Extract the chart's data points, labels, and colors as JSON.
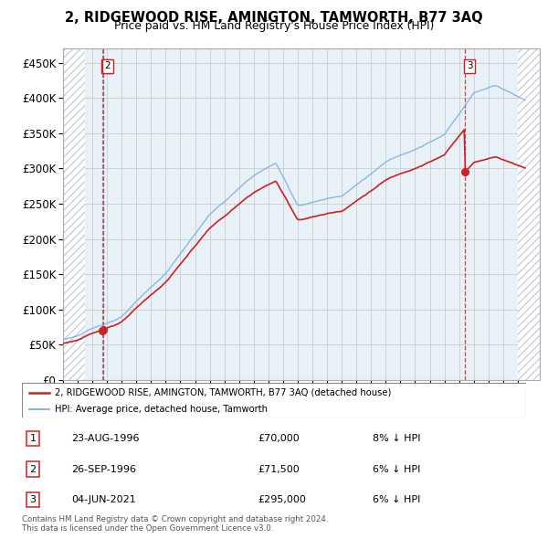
{
  "title": "2, RIDGEWOOD RISE, AMINGTON, TAMWORTH, B77 3AQ",
  "subtitle": "Price paid vs. HM Land Registry's House Price Index (HPI)",
  "ylim": [
    0,
    470000
  ],
  "yticks": [
    0,
    50000,
    100000,
    150000,
    200000,
    250000,
    300000,
    350000,
    400000,
    450000
  ],
  "ytick_labels": [
    "£0",
    "£50K",
    "£100K",
    "£150K",
    "£200K",
    "£250K",
    "£300K",
    "£350K",
    "£400K",
    "£450K"
  ],
  "xlim_start": 1994.0,
  "xlim_end": 2026.5,
  "hpi_color": "#7fb2e5",
  "price_color": "#cc2222",
  "marker_color": "#cc2222",
  "transaction_color": "#cc2222",
  "vline_colors": [
    "#5588cc",
    "#cc2222",
    "#cc2222"
  ],
  "grid_color": "#cccccc",
  "bg_color": "#e8f0f8",
  "hatch_color": "#c8d0dc",
  "transactions": [
    {
      "date_num": 1996.648,
      "price": 70000,
      "label": "1"
    },
    {
      "date_num": 1996.74,
      "price": 71500,
      "label": "2"
    },
    {
      "date_num": 2021.42,
      "price": 295000,
      "label": "3"
    }
  ],
  "legend_line1": "2, RIDGEWOOD RISE, AMINGTON, TAMWORTH, B77 3AQ (detached house)",
  "legend_line2": "HPI: Average price, detached house, Tamworth",
  "table_rows": [
    {
      "num": "1",
      "date": "23-AUG-1996",
      "price": "£70,000",
      "hpi": "8% ↓ HPI"
    },
    {
      "num": "2",
      "date": "26-SEP-1996",
      "price": "£71,500",
      "hpi": "6% ↓ HPI"
    },
    {
      "num": "3",
      "date": "04-JUN-2021",
      "price": "£295,000",
      "hpi": "6% ↓ HPI"
    }
  ],
  "footnote": "Contains HM Land Registry data © Crown copyright and database right 2024.\nThis data is licensed under the Open Government Licence v3.0."
}
